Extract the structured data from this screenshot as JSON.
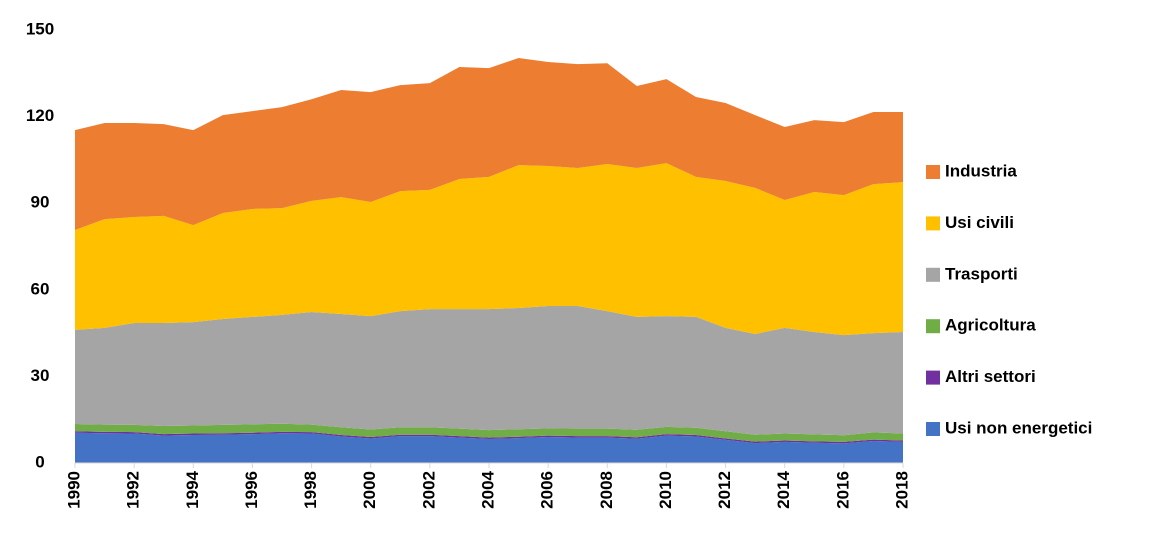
{
  "chart_data": {
    "type": "stacked-area",
    "x": [
      1990,
      1991,
      1992,
      1993,
      1994,
      1995,
      1996,
      1997,
      1998,
      1999,
      2000,
      2001,
      2002,
      2003,
      2004,
      2005,
      2006,
      2007,
      2008,
      2009,
      2010,
      2011,
      2012,
      2013,
      2014,
      2015,
      2016,
      2017,
      2018
    ],
    "xlim": [
      1990,
      2018
    ],
    "xticks": [
      1990,
      1992,
      1994,
      1996,
      1998,
      2000,
      2002,
      2004,
      2006,
      2008,
      2010,
      2012,
      2014,
      2016,
      2018
    ],
    "ylim": [
      0,
      150
    ],
    "yticks": [
      0,
      30,
      60,
      90,
      120,
      150
    ],
    "grid": false,
    "legend": "right",
    "series": [
      {
        "name": "Usi non energetici",
        "color": "#4472C4",
        "values": [
          10.5,
          10.3,
          10.2,
          9.5,
          9.7,
          9.8,
          10,
          10.3,
          10.2,
          9.2,
          8.5,
          9.3,
          9.3,
          8.8,
          8.3,
          8.6,
          9,
          8.8,
          8.8,
          8.4,
          9.5,
          9.2,
          8,
          6.9,
          7.3,
          7,
          6.8,
          7.6,
          7.3
        ]
      },
      {
        "name": "Altri settori",
        "color": "#7030A0",
        "values": [
          0.5,
          0.5,
          0.5,
          0.5,
          0.5,
          0.5,
          0.5,
          0.5,
          0.5,
          0.5,
          0.5,
          0.5,
          0.5,
          0.5,
          0.5,
          0.5,
          0.5,
          0.5,
          0.5,
          0.5,
          0.5,
          0.5,
          0.5,
          0.5,
          0.5,
          0.5,
          0.5,
          0.5,
          0.5
        ]
      },
      {
        "name": "Agricoltura",
        "color": "#70AD47",
        "values": [
          2.5,
          2.5,
          2.5,
          2.8,
          2.8,
          2.9,
          2.9,
          2.8,
          2.6,
          2.7,
          2.6,
          2.6,
          2.6,
          2.6,
          2.6,
          2.6,
          2.5,
          2.6,
          2.6,
          2.6,
          2.5,
          2.5,
          2.5,
          2.4,
          2.4,
          2.4,
          2.3,
          2.5,
          2.4
        ]
      },
      {
        "name": "Trasporti",
        "color": "#A5A5A5",
        "values": [
          32.6,
          33.5,
          35.3,
          35.7,
          35.8,
          36.7,
          37.2,
          37.7,
          39,
          39.2,
          39.3,
          40.2,
          40.9,
          41.4,
          41.9,
          42,
          42.4,
          42.5,
          40.7,
          39.1,
          38.4,
          38.4,
          35.8,
          34.9,
          36.6,
          35.5,
          34.7,
          34.4,
          35.2
        ]
      },
      {
        "name": "Usi civili",
        "color": "#FFC000",
        "values": [
          34.6,
          37.7,
          36.7,
          37.1,
          33.6,
          36.7,
          37.4,
          37,
          38.5,
          40.5,
          39.5,
          41.6,
          41.3,
          45.1,
          45.8,
          49.5,
          48.5,
          47.8,
          51,
          51.6,
          53,
          48.5,
          50.9,
          50.6,
          44.3,
          48.5,
          48.5,
          51.6,
          51.9
        ]
      },
      {
        "name": "Industria",
        "color": "#ED7D31",
        "values": [
          34.6,
          33.3,
          32.6,
          31.8,
          32.9,
          33.9,
          33.9,
          35,
          35.2,
          37.1,
          38.1,
          36.7,
          37,
          38.8,
          37.7,
          37.1,
          36,
          36,
          34.9,
          28.4,
          29.1,
          27.7,
          27,
          25.2,
          25.3,
          24.9,
          25.3,
          25,
          24.3
        ]
      }
    ]
  }
}
